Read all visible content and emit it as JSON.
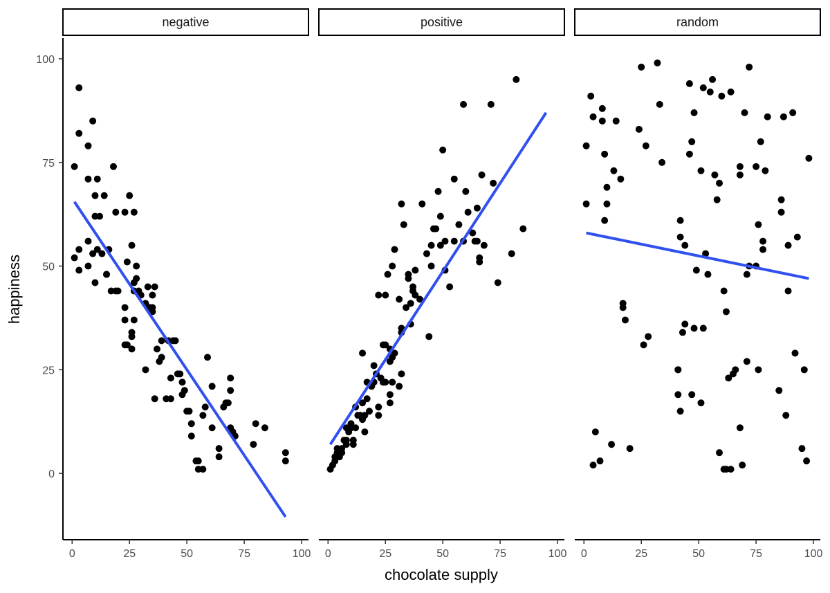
{
  "chart_data": {
    "type": "scatter",
    "title": "",
    "xlabel": "chocolate supply",
    "ylabel": "happiness",
    "xlim": [
      -4,
      103
    ],
    "ylim": [
      -16,
      105
    ],
    "x_ticks": [
      0,
      25,
      50,
      75,
      100
    ],
    "y_ticks": [
      0,
      25,
      50,
      75,
      100
    ],
    "x_tick_labels": [
      "0",
      "25",
      "50",
      "75",
      "100"
    ],
    "y_tick_labels": [
      "0",
      "25",
      "50",
      "75",
      "100"
    ],
    "grid": false,
    "legend": "none",
    "colors": {
      "points": "#000000",
      "fit_line": "#3050f0",
      "axis": "#000000",
      "strip_fill": "#ffffff"
    },
    "panels": [
      {
        "name": "negative",
        "fit_line": {
          "x": [
            1,
            93
          ],
          "y": [
            65.5,
            -10.5
          ]
        },
        "points": [
          [
            1,
            52
          ],
          [
            1,
            74
          ],
          [
            3,
            93
          ],
          [
            3,
            82
          ],
          [
            3,
            54
          ],
          [
            3,
            49
          ],
          [
            7,
            79
          ],
          [
            7,
            50
          ],
          [
            7,
            56
          ],
          [
            7,
            71
          ],
          [
            9,
            85
          ],
          [
            9,
            53
          ],
          [
            10,
            62
          ],
          [
            10,
            67
          ],
          [
            10,
            46
          ],
          [
            11,
            54
          ],
          [
            11,
            71
          ],
          [
            12,
            62
          ],
          [
            13,
            53
          ],
          [
            14,
            67
          ],
          [
            15,
            48
          ],
          [
            15,
            48
          ],
          [
            16,
            54
          ],
          [
            17,
            44
          ],
          [
            18,
            74
          ],
          [
            19,
            44
          ],
          [
            19,
            63
          ],
          [
            20,
            44
          ],
          [
            23,
            63
          ],
          [
            23,
            40
          ],
          [
            23,
            37
          ],
          [
            23,
            31
          ],
          [
            24,
            51
          ],
          [
            24,
            31
          ],
          [
            25,
            67
          ],
          [
            26,
            55
          ],
          [
            26,
            33
          ],
          [
            26,
            34
          ],
          [
            26,
            30
          ],
          [
            27,
            63
          ],
          [
            27,
            37
          ],
          [
            27,
            44
          ],
          [
            27,
            46
          ],
          [
            28,
            50
          ],
          [
            28,
            47
          ],
          [
            29,
            44
          ],
          [
            30,
            43
          ],
          [
            32,
            41
          ],
          [
            32,
            25
          ],
          [
            33,
            45
          ],
          [
            33,
            40
          ],
          [
            34,
            40
          ],
          [
            35,
            43
          ],
          [
            35,
            39
          ],
          [
            35,
            40
          ],
          [
            36,
            45
          ],
          [
            36,
            18
          ],
          [
            37,
            30
          ],
          [
            38,
            27
          ],
          [
            39,
            28
          ],
          [
            39,
            32
          ],
          [
            41,
            18
          ],
          [
            42,
            32
          ],
          [
            43,
            23
          ],
          [
            43,
            18
          ],
          [
            44,
            32
          ],
          [
            45,
            32
          ],
          [
            46,
            24
          ],
          [
            47,
            24
          ],
          [
            48,
            19
          ],
          [
            48,
            22
          ],
          [
            49,
            20
          ],
          [
            50,
            15
          ],
          [
            51,
            15
          ],
          [
            52,
            12
          ],
          [
            52,
            9
          ],
          [
            54,
            3
          ],
          [
            55,
            3
          ],
          [
            55,
            1
          ],
          [
            57,
            1
          ],
          [
            57,
            14
          ],
          [
            58,
            16
          ],
          [
            59,
            28
          ],
          [
            61,
            11
          ],
          [
            61,
            21
          ],
          [
            64,
            4
          ],
          [
            64,
            6
          ],
          [
            66,
            16
          ],
          [
            67,
            17
          ],
          [
            68,
            17
          ],
          [
            69,
            11
          ],
          [
            69,
            20
          ],
          [
            69,
            23
          ],
          [
            70,
            10
          ],
          [
            71,
            9
          ],
          [
            79,
            7
          ],
          [
            80,
            12
          ],
          [
            84,
            11
          ],
          [
            93,
            5
          ],
          [
            93,
            3
          ]
        ]
      },
      {
        "name": "positive",
        "fit_line": {
          "x": [
            1,
            95
          ],
          "y": [
            7,
            87
          ]
        },
        "points": [
          [
            1,
            1
          ],
          [
            2,
            2
          ],
          [
            3,
            3
          ],
          [
            3,
            4
          ],
          [
            4,
            5
          ],
          [
            4,
            6
          ],
          [
            5,
            4
          ],
          [
            6,
            5
          ],
          [
            6,
            6
          ],
          [
            7,
            8
          ],
          [
            8,
            7
          ],
          [
            8,
            8
          ],
          [
            8,
            11
          ],
          [
            9,
            10
          ],
          [
            10,
            11
          ],
          [
            10,
            11
          ],
          [
            10,
            12
          ],
          [
            11,
            8
          ],
          [
            11,
            7
          ],
          [
            12,
            11
          ],
          [
            12,
            16
          ],
          [
            13,
            14
          ],
          [
            14,
            14
          ],
          [
            15,
            13
          ],
          [
            15,
            17
          ],
          [
            15,
            29
          ],
          [
            16,
            14
          ],
          [
            16,
            10
          ],
          [
            17,
            18
          ],
          [
            17,
            22
          ],
          [
            18,
            15
          ],
          [
            19,
            21
          ],
          [
            20,
            22
          ],
          [
            20,
            26
          ],
          [
            21,
            24
          ],
          [
            22,
            43
          ],
          [
            22,
            14
          ],
          [
            22,
            16
          ],
          [
            23,
            23
          ],
          [
            24,
            31
          ],
          [
            24,
            22
          ],
          [
            25,
            31
          ],
          [
            25,
            22
          ],
          [
            25,
            43
          ],
          [
            26,
            48
          ],
          [
            27,
            19
          ],
          [
            27,
            27
          ],
          [
            27,
            30
          ],
          [
            27,
            17
          ],
          [
            28,
            22
          ],
          [
            28,
            28
          ],
          [
            28,
            50
          ],
          [
            29,
            54
          ],
          [
            29,
            29
          ],
          [
            31,
            21
          ],
          [
            31,
            42
          ],
          [
            32,
            65
          ],
          [
            32,
            35
          ],
          [
            32,
            34
          ],
          [
            32,
            24
          ],
          [
            33,
            60
          ],
          [
            34,
            40
          ],
          [
            35,
            47
          ],
          [
            35,
            48
          ],
          [
            36,
            36
          ],
          [
            36,
            41
          ],
          [
            37,
            44
          ],
          [
            37,
            45
          ],
          [
            38,
            49
          ],
          [
            38,
            43
          ],
          [
            40,
            42
          ],
          [
            41,
            65
          ],
          [
            43,
            53
          ],
          [
            44,
            33
          ],
          [
            45,
            50
          ],
          [
            45,
            55
          ],
          [
            46,
            59
          ],
          [
            47,
            59
          ],
          [
            48,
            68
          ],
          [
            49,
            55
          ],
          [
            49,
            62
          ],
          [
            50,
            78
          ],
          [
            51,
            56
          ],
          [
            51,
            49
          ],
          [
            53,
            45
          ],
          [
            55,
            56
          ],
          [
            55,
            71
          ],
          [
            57,
            60
          ],
          [
            59,
            56
          ],
          [
            59,
            89
          ],
          [
            60,
            68
          ],
          [
            61,
            63
          ],
          [
            63,
            58
          ],
          [
            64,
            56
          ],
          [
            65,
            56
          ],
          [
            65,
            64
          ],
          [
            66,
            51
          ],
          [
            66,
            52
          ],
          [
            67,
            72
          ],
          [
            68,
            55
          ],
          [
            71,
            89
          ],
          [
            72,
            70
          ],
          [
            74,
            46
          ],
          [
            80,
            53
          ],
          [
            82,
            95
          ],
          [
            85,
            59
          ]
        ]
      },
      {
        "name": "random",
        "fit_line": {
          "x": [
            1,
            98
          ],
          "y": [
            58,
            47
          ]
        },
        "points": [
          [
            1,
            79
          ],
          [
            1,
            65
          ],
          [
            3,
            91
          ],
          [
            4,
            86
          ],
          [
            4,
            2
          ],
          [
            5,
            10
          ],
          [
            7,
            3
          ],
          [
            8,
            88
          ],
          [
            8,
            85
          ],
          [
            9,
            61
          ],
          [
            9,
            77
          ],
          [
            10,
            69
          ],
          [
            10,
            65
          ],
          [
            12,
            7
          ],
          [
            13,
            73
          ],
          [
            14,
            85
          ],
          [
            16,
            71
          ],
          [
            17,
            41
          ],
          [
            17,
            40
          ],
          [
            18,
            37
          ],
          [
            20,
            6
          ],
          [
            24,
            83
          ],
          [
            25,
            98
          ],
          [
            26,
            31
          ],
          [
            27,
            79
          ],
          [
            28,
            33
          ],
          [
            32,
            99
          ],
          [
            33,
            89
          ],
          [
            34,
            75
          ],
          [
            41,
            19
          ],
          [
            41,
            25
          ],
          [
            41,
            25
          ],
          [
            42,
            15
          ],
          [
            42,
            57
          ],
          [
            42,
            61
          ],
          [
            43,
            34
          ],
          [
            44,
            36
          ],
          [
            44,
            55
          ],
          [
            46,
            94
          ],
          [
            46,
            77
          ],
          [
            47,
            80
          ],
          [
            47,
            19
          ],
          [
            48,
            35
          ],
          [
            48,
            87
          ],
          [
            49,
            49
          ],
          [
            51,
            73
          ],
          [
            51,
            17
          ],
          [
            52,
            35
          ],
          [
            52,
            93
          ],
          [
            53,
            53
          ],
          [
            54,
            48
          ],
          [
            55,
            92
          ],
          [
            56,
            95
          ],
          [
            57,
            72
          ],
          [
            58,
            66
          ],
          [
            59,
            5
          ],
          [
            59,
            70
          ],
          [
            60,
            91
          ],
          [
            61,
            44
          ],
          [
            61,
            1
          ],
          [
            62,
            1
          ],
          [
            62,
            39
          ],
          [
            63,
            23
          ],
          [
            64,
            92
          ],
          [
            64,
            1
          ],
          [
            65,
            24
          ],
          [
            66,
            25
          ],
          [
            68,
            72
          ],
          [
            68,
            11
          ],
          [
            68,
            74
          ],
          [
            69,
            2
          ],
          [
            70,
            87
          ],
          [
            71,
            27
          ],
          [
            71,
            48
          ],
          [
            72,
            98
          ],
          [
            72,
            50
          ],
          [
            75,
            50
          ],
          [
            75,
            74
          ],
          [
            76,
            60
          ],
          [
            76,
            25
          ],
          [
            77,
            80
          ],
          [
            78,
            56
          ],
          [
            78,
            54
          ],
          [
            79,
            73
          ],
          [
            80,
            86
          ],
          [
            85,
            20
          ],
          [
            86,
            66
          ],
          [
            86,
            63
          ],
          [
            87,
            86
          ],
          [
            88,
            14
          ],
          [
            89,
            44
          ],
          [
            89,
            55
          ],
          [
            91,
            87
          ],
          [
            92,
            29
          ],
          [
            93,
            57
          ],
          [
            95,
            6
          ],
          [
            96,
            25
          ],
          [
            97,
            3
          ],
          [
            98,
            76
          ]
        ]
      }
    ]
  }
}
